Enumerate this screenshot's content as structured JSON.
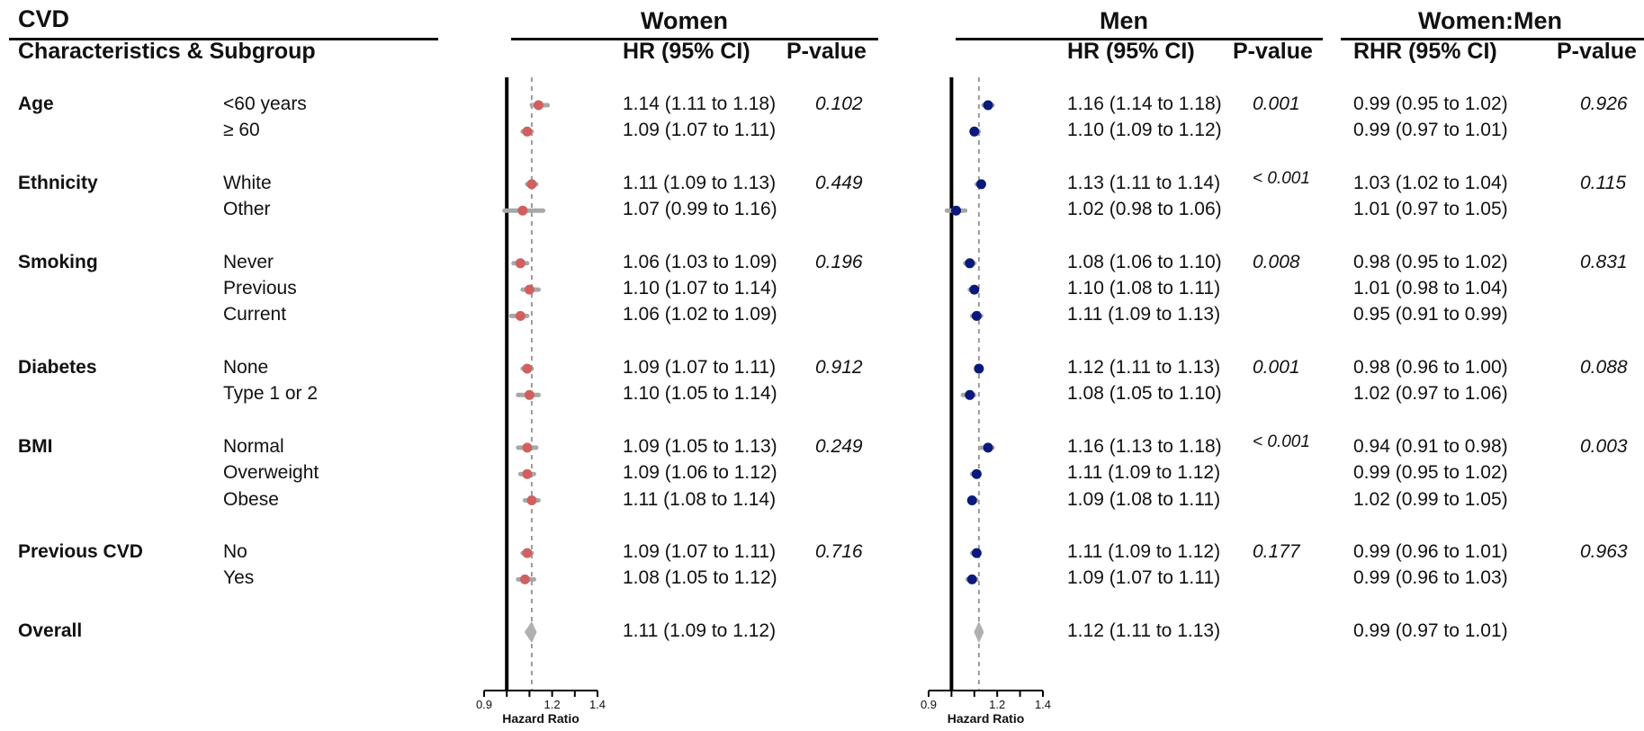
{
  "header": {
    "title": "CVD",
    "char_header": "Characteristics & Subgroup",
    "women_title": "Women",
    "men_title": "Men",
    "wm_title": "Women:Men",
    "hr_header": "HR (95% CI)",
    "rhr_header": "RHR (95% CI)",
    "pval_header": "P-value"
  },
  "groups": [
    {
      "name": "Age",
      "p_women": "0.102",
      "p_men": "0.001",
      "p_wm": "0.926",
      "rows": [
        {
          "label": "<60 years",
          "women_ci": "1.14 (1.11 to 1.18)",
          "men_ci": "1.16 (1.14 to 1.18)",
          "wm_ci": "0.99 (0.95 to 1.02)"
        },
        {
          "label": "≥ 60",
          "women_ci": "1.09 (1.07 to 1.11)",
          "men_ci": "1.10 (1.09 to 1.12)",
          "wm_ci": "0.99 (0.97 to 1.01)"
        }
      ]
    },
    {
      "name": "Ethnicity",
      "p_women": "0.449",
      "p_men": "< 0.001",
      "p_wm": "0.115",
      "rows": [
        {
          "label": "White",
          "women_ci": "1.11 (1.09 to 1.13)",
          "men_ci": "1.13 (1.11 to 1.14)",
          "wm_ci": "1.03 (1.02 to 1.04)"
        },
        {
          "label": "Other",
          "women_ci": "1.07 (0.99 to 1.16)",
          "men_ci": "1.02 (0.98 to 1.06)",
          "wm_ci": "1.01 (0.97 to 1.05)"
        }
      ]
    },
    {
      "name": "Smoking",
      "p_women": "0.196",
      "p_men": "0.008",
      "p_wm": "0.831",
      "rows": [
        {
          "label": "Never",
          "women_ci": "1.06 (1.03 to 1.09)",
          "men_ci": "1.08 (1.06 to 1.10)",
          "wm_ci": "0.98 (0.95 to 1.02)"
        },
        {
          "label": "Previous",
          "women_ci": "1.10 (1.07 to 1.14)",
          "men_ci": "1.10 (1.08 to 1.11)",
          "wm_ci": "1.01 (0.98 to 1.04)"
        },
        {
          "label": "Current",
          "women_ci": "1.06 (1.02 to 1.09)",
          "men_ci": "1.11 (1.09 to 1.13)",
          "wm_ci": "0.95 (0.91 to 0.99)"
        }
      ]
    },
    {
      "name": "Diabetes",
      "p_women": "0.912",
      "p_men": "0.001",
      "p_wm": "0.088",
      "rows": [
        {
          "label": "None",
          "women_ci": "1.09 (1.07 to 1.11)",
          "men_ci": "1.12 (1.11 to 1.13)",
          "wm_ci": "0.98 (0.96 to 1.00)"
        },
        {
          "label": "Type 1 or 2",
          "women_ci": "1.10 (1.05 to 1.14)",
          "men_ci": "1.08 (1.05 to 1.10)",
          "wm_ci": "1.02 (0.97 to 1.06)"
        }
      ]
    },
    {
      "name": "BMI",
      "p_women": "0.249",
      "p_men": "< 0.001",
      "p_wm": "0.003",
      "rows": [
        {
          "label": "Normal",
          "women_ci": "1.09 (1.05 to 1.13)",
          "men_ci": "1.16 (1.13 to 1.18)",
          "wm_ci": "0.94 (0.91 to 0.98)"
        },
        {
          "label": "Overweight",
          "women_ci": "1.09 (1.06 to 1.12)",
          "men_ci": "1.11 (1.09 to 1.12)",
          "wm_ci": "0.99 (0.95 to 1.02)"
        },
        {
          "label": "Obese",
          "women_ci": "1.11 (1.08 to 1.14)",
          "men_ci": "1.09 (1.08 to 1.11)",
          "wm_ci": "1.02 (0.99 to 1.05)"
        }
      ]
    },
    {
      "name": "Previous CVD",
      "p_women": "0.716",
      "p_men": "0.177",
      "p_wm": "0.963",
      "rows": [
        {
          "label": "No",
          "women_ci": "1.09 (1.07 to 1.11)",
          "men_ci": "1.11 (1.09 to 1.12)",
          "wm_ci": "0.99 (0.96 to 1.01)"
        },
        {
          "label": "Yes",
          "women_ci": "1.08 (1.05 to 1.12)",
          "men_ci": "1.09 (1.07 to 1.11)",
          "wm_ci": "0.99 (0.96 to 1.03)"
        }
      ]
    }
  ],
  "overall": {
    "label": "Overall",
    "women_ci": "1.11 (1.09 to 1.12)",
    "men_ci": "1.12 (1.11 to 1.13)",
    "wm_ci": "0.99 (0.97 to 1.01)"
  },
  "colors": {
    "women_point": "#d06060",
    "men_point": "#0a1a7a",
    "ci_bar": "#a8a8a8",
    "overall_diamond": "#b0b0b0",
    "ref_line": "#9a9a9a"
  },
  "chart_data": [
    {
      "type": "scatter",
      "subtype": "forest",
      "title": "Women",
      "xlabel": "Hazard Ratio",
      "xlim": [
        0.9,
        1.4
      ],
      "xticks": [
        0.9,
        1.2,
        1.4
      ],
      "reference_line": 1.11,
      "categories": [
        "<60 years",
        "≥ 60",
        "White",
        "Other",
        "Never",
        "Previous",
        "Current",
        "None",
        "Type 1 or 2",
        "Normal",
        "Overweight",
        "Obese",
        "No",
        "Yes",
        "Overall"
      ],
      "hr": [
        1.14,
        1.09,
        1.11,
        1.07,
        1.06,
        1.1,
        1.06,
        1.09,
        1.1,
        1.09,
        1.09,
        1.11,
        1.09,
        1.08,
        1.11
      ],
      "lower": [
        1.11,
        1.07,
        1.09,
        0.99,
        1.03,
        1.07,
        1.02,
        1.07,
        1.05,
        1.05,
        1.06,
        1.08,
        1.07,
        1.05,
        1.09
      ],
      "upper": [
        1.18,
        1.11,
        1.13,
        1.16,
        1.09,
        1.14,
        1.09,
        1.11,
        1.14,
        1.13,
        1.12,
        1.14,
        1.11,
        1.12,
        1.12
      ]
    },
    {
      "type": "scatter",
      "subtype": "forest",
      "title": "Men",
      "xlabel": "Hazard Ratio",
      "xlim": [
        0.9,
        1.4
      ],
      "xticks": [
        0.9,
        1.2,
        1.4
      ],
      "reference_line": 1.12,
      "categories": [
        "<60 years",
        "≥ 60",
        "White",
        "Other",
        "Never",
        "Previous",
        "Current",
        "None",
        "Type 1 or 2",
        "Normal",
        "Overweight",
        "Obese",
        "No",
        "Yes",
        "Overall"
      ],
      "hr": [
        1.16,
        1.1,
        1.13,
        1.02,
        1.08,
        1.1,
        1.11,
        1.12,
        1.08,
        1.16,
        1.11,
        1.09,
        1.11,
        1.09,
        1.12
      ],
      "lower": [
        1.14,
        1.09,
        1.11,
        0.98,
        1.06,
        1.08,
        1.09,
        1.11,
        1.05,
        1.13,
        1.09,
        1.08,
        1.09,
        1.07,
        1.11
      ],
      "upper": [
        1.18,
        1.12,
        1.14,
        1.06,
        1.1,
        1.11,
        1.13,
        1.13,
        1.1,
        1.18,
        1.12,
        1.11,
        1.12,
        1.11,
        1.13
      ]
    }
  ]
}
